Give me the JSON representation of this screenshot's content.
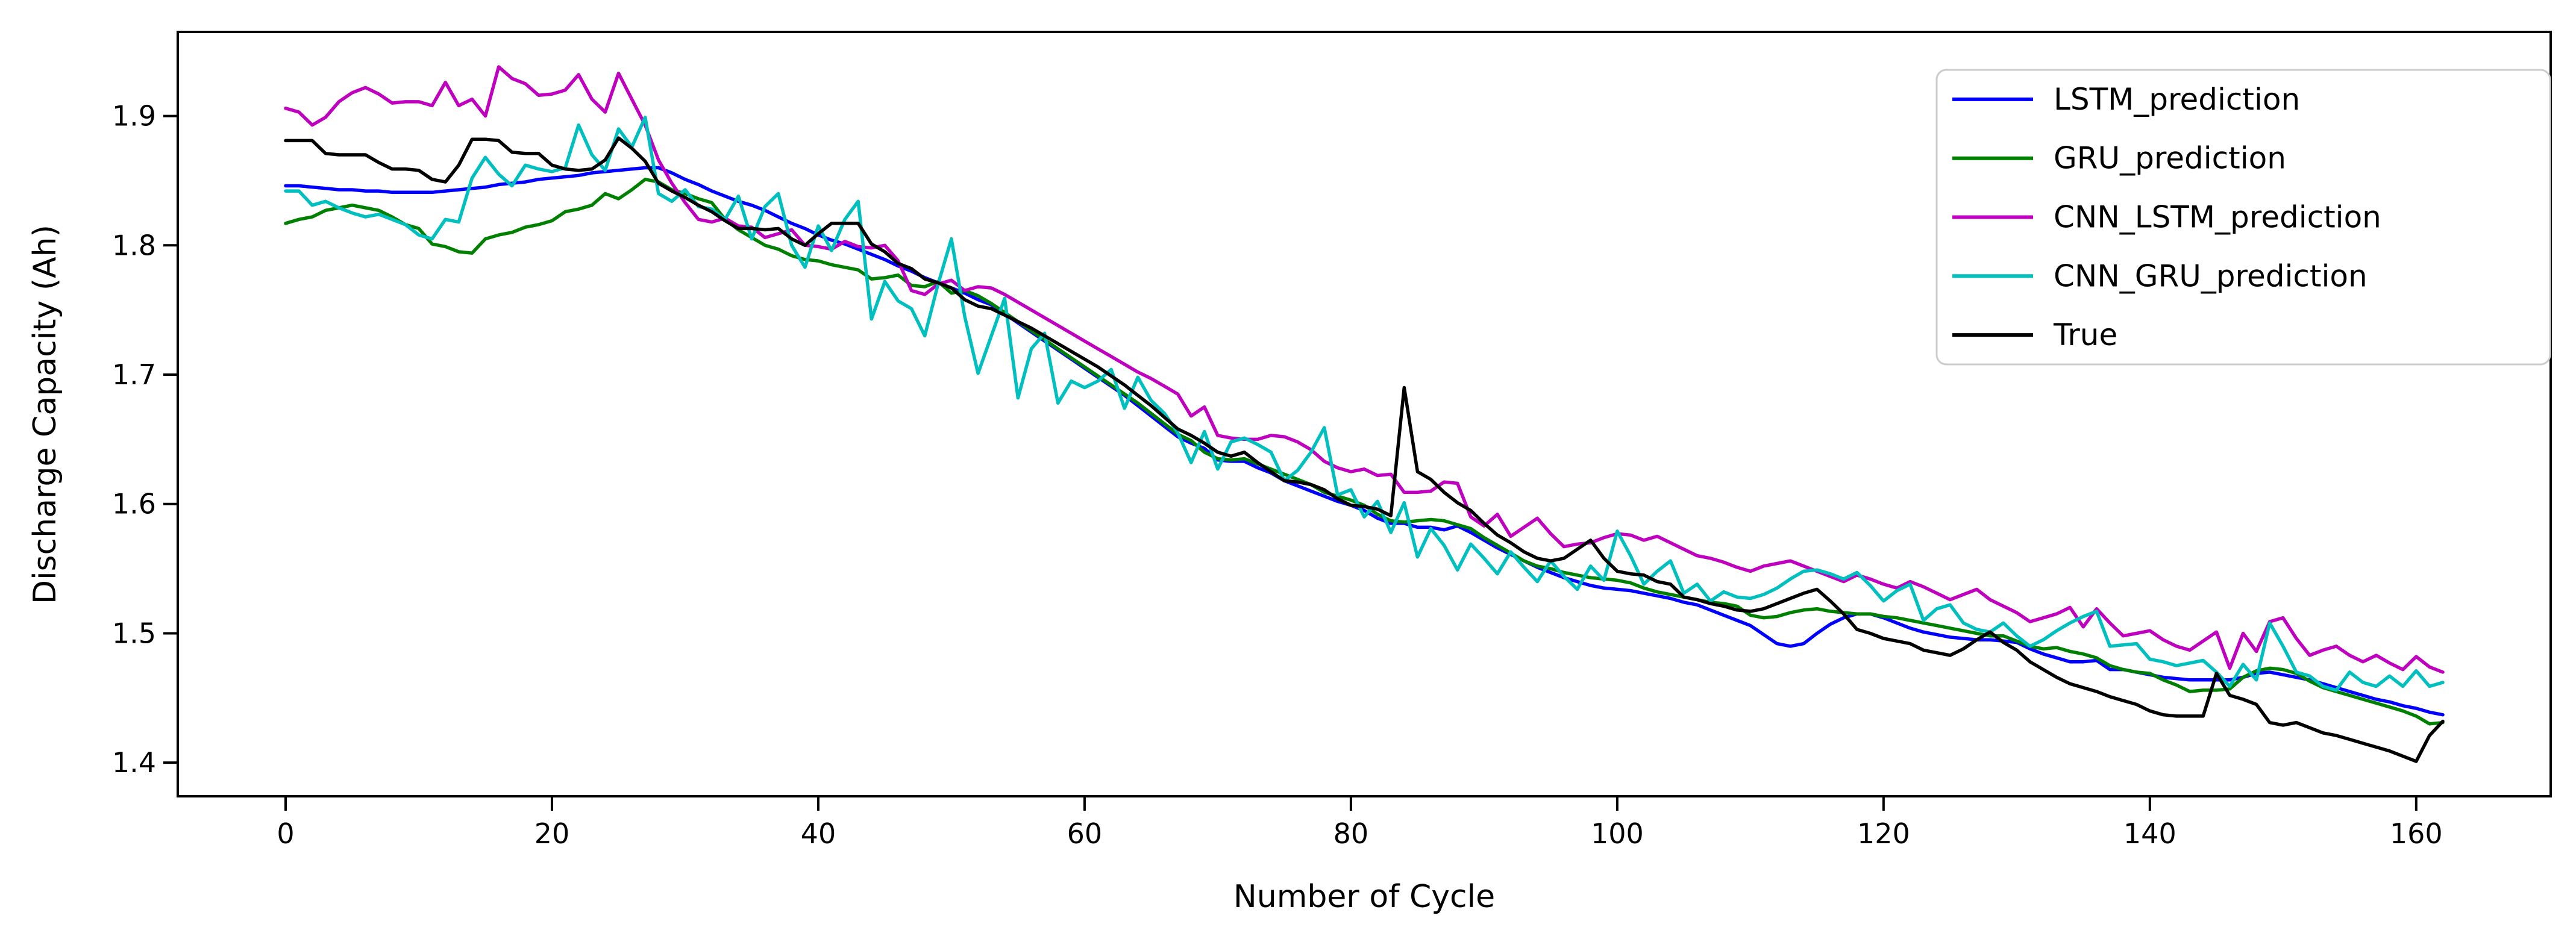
{
  "chart_data": {
    "type": "line",
    "title": "",
    "xlabel": "Number of Cycle",
    "ylabel": "Discharge Capacity (Ah)",
    "grid": false,
    "legend_position": "upper right",
    "xlim": [
      -8.1,
      170.1
    ],
    "ylim": [
      1.374,
      1.965
    ],
    "x_ticks": [
      0,
      20,
      40,
      60,
      80,
      100,
      120,
      140,
      160
    ],
    "y_ticks": [
      1.4,
      1.5,
      1.6,
      1.7,
      1.8,
      1.9
    ],
    "x": [
      0,
      1,
      2,
      3,
      4,
      5,
      6,
      7,
      8,
      9,
      10,
      11,
      12,
      13,
      14,
      15,
      16,
      17,
      18,
      19,
      20,
      21,
      22,
      23,
      24,
      25,
      26,
      27,
      28,
      29,
      30,
      31,
      32,
      33,
      34,
      35,
      36,
      37,
      38,
      39,
      40,
      41,
      42,
      43,
      44,
      45,
      46,
      47,
      48,
      49,
      50,
      51,
      52,
      53,
      54,
      55,
      56,
      57,
      58,
      59,
      60,
      61,
      62,
      63,
      64,
      65,
      66,
      67,
      68,
      69,
      70,
      71,
      72,
      73,
      74,
      75,
      76,
      77,
      78,
      79,
      80,
      81,
      82,
      83,
      84,
      85,
      86,
      87,
      88,
      89,
      90,
      91,
      92,
      93,
      94,
      95,
      96,
      97,
      98,
      99,
      100,
      101,
      102,
      103,
      104,
      105,
      106,
      107,
      108,
      109,
      110,
      111,
      112,
      113,
      114,
      115,
      116,
      117,
      118,
      119,
      120,
      121,
      122,
      123,
      124,
      125,
      126,
      127,
      128,
      129,
      130,
      131,
      132,
      133,
      134,
      135,
      136,
      137,
      138,
      139,
      140,
      141,
      142,
      143,
      144,
      145,
      146,
      147,
      148,
      149,
      150,
      151,
      152,
      153,
      154,
      155,
      156,
      157,
      158,
      159,
      160,
      161,
      162
    ],
    "series": [
      {
        "name": "LSTM_prediction",
        "color": "#0000ff",
        "values": [
          1.846,
          1.846,
          1.845,
          1.844,
          1.843,
          1.843,
          1.842,
          1.842,
          1.841,
          1.841,
          1.841,
          1.841,
          1.842,
          1.843,
          1.844,
          1.845,
          1.847,
          1.848,
          1.849,
          1.851,
          1.852,
          1.853,
          1.854,
          1.856,
          1.857,
          1.858,
          1.859,
          1.86,
          1.86,
          1.856,
          1.851,
          1.847,
          1.842,
          1.838,
          1.834,
          1.831,
          1.827,
          1.822,
          1.817,
          1.813,
          1.808,
          1.804,
          1.801,
          1.797,
          1.793,
          1.789,
          1.784,
          1.78,
          1.775,
          1.771,
          1.767,
          1.763,
          1.758,
          1.754,
          1.747,
          1.74,
          1.733,
          1.726,
          1.719,
          1.712,
          1.705,
          1.698,
          1.691,
          1.684,
          1.676,
          1.668,
          1.66,
          1.652,
          1.647,
          1.643,
          1.634,
          1.633,
          1.633,
          1.628,
          1.624,
          1.618,
          1.614,
          1.61,
          1.606,
          1.602,
          1.599,
          1.595,
          1.589,
          1.585,
          1.585,
          1.582,
          1.582,
          1.58,
          1.583,
          1.578,
          1.572,
          1.566,
          1.561,
          1.556,
          1.551,
          1.547,
          1.543,
          1.54,
          1.537,
          1.535,
          1.534,
          1.533,
          1.531,
          1.529,
          1.527,
          1.524,
          1.522,
          1.518,
          1.514,
          1.51,
          1.506,
          1.499,
          1.492,
          1.49,
          1.492,
          1.5,
          1.507,
          1.512,
          1.515,
          1.515,
          1.512,
          1.508,
          1.504,
          1.501,
          1.499,
          1.497,
          1.496,
          1.495,
          1.495,
          1.494,
          1.493,
          1.488,
          1.484,
          1.481,
          1.478,
          1.478,
          1.479,
          1.472,
          1.472,
          1.47,
          1.468,
          1.466,
          1.465,
          1.464,
          1.464,
          1.464,
          1.464,
          1.466,
          1.469,
          1.47,
          1.468,
          1.466,
          1.464,
          1.461,
          1.458,
          1.455,
          1.452,
          1.449,
          1.447,
          1.444,
          1.442,
          1.439,
          1.437
        ]
      },
      {
        "name": "GRU_prediction",
        "color": "#008000",
        "values": [
          1.817,
          1.82,
          1.822,
          1.827,
          1.829,
          1.831,
          1.829,
          1.827,
          1.822,
          1.816,
          1.813,
          1.801,
          1.799,
          1.795,
          1.794,
          1.805,
          1.808,
          1.81,
          1.814,
          1.816,
          1.819,
          1.826,
          1.828,
          1.831,
          1.84,
          1.836,
          1.843,
          1.851,
          1.849,
          1.843,
          1.84,
          1.836,
          1.833,
          1.82,
          1.812,
          1.806,
          1.8,
          1.797,
          1.792,
          1.789,
          1.788,
          1.785,
          1.783,
          1.781,
          1.774,
          1.775,
          1.777,
          1.769,
          1.768,
          1.772,
          1.763,
          1.765,
          1.761,
          1.755,
          1.748,
          1.741,
          1.734,
          1.727,
          1.72,
          1.713,
          1.706,
          1.699,
          1.692,
          1.685,
          1.678,
          1.67,
          1.662,
          1.654,
          1.649,
          1.64,
          1.635,
          1.634,
          1.635,
          1.631,
          1.627,
          1.623,
          1.619,
          1.615,
          1.609,
          1.606,
          1.603,
          1.599,
          1.592,
          1.587,
          1.586,
          1.587,
          1.588,
          1.587,
          1.584,
          1.581,
          1.574,
          1.568,
          1.562,
          1.556,
          1.552,
          1.55,
          1.547,
          1.545,
          1.543,
          1.542,
          1.541,
          1.539,
          1.535,
          1.532,
          1.53,
          1.528,
          1.526,
          1.524,
          1.523,
          1.521,
          1.514,
          1.512,
          1.513,
          1.516,
          1.518,
          1.519,
          1.517,
          1.516,
          1.515,
          1.515,
          1.513,
          1.512,
          1.51,
          1.508,
          1.506,
          1.504,
          1.502,
          1.5,
          1.498,
          1.498,
          1.494,
          1.49,
          1.488,
          1.489,
          1.486,
          1.484,
          1.481,
          1.475,
          1.472,
          1.47,
          1.469,
          1.464,
          1.46,
          1.455,
          1.456,
          1.456,
          1.457,
          1.466,
          1.471,
          1.473,
          1.472,
          1.469,
          1.463,
          1.458,
          1.455,
          1.452,
          1.449,
          1.446,
          1.443,
          1.44,
          1.436,
          1.43,
          1.431
        ]
      },
      {
        "name": "CNN_LSTM_prediction",
        "color": "#bf00bf",
        "values": [
          1.906,
          1.903,
          1.893,
          1.899,
          1.911,
          1.918,
          1.922,
          1.917,
          1.91,
          1.911,
          1.911,
          1.908,
          1.926,
          1.908,
          1.913,
          1.9,
          1.938,
          1.929,
          1.925,
          1.916,
          1.917,
          1.92,
          1.932,
          1.913,
          1.903,
          1.933,
          1.913,
          1.893,
          1.866,
          1.848,
          1.833,
          1.82,
          1.818,
          1.821,
          1.815,
          1.814,
          1.806,
          1.809,
          1.812,
          1.8,
          1.799,
          1.797,
          1.803,
          1.799,
          1.798,
          1.8,
          1.788,
          1.765,
          1.762,
          1.77,
          1.773,
          1.765,
          1.768,
          1.767,
          1.762,
          1.756,
          1.75,
          1.744,
          1.738,
          1.732,
          1.726,
          1.72,
          1.714,
          1.708,
          1.702,
          1.697,
          1.691,
          1.685,
          1.668,
          1.675,
          1.653,
          1.651,
          1.65,
          1.65,
          1.653,
          1.652,
          1.648,
          1.642,
          1.633,
          1.628,
          1.625,
          1.627,
          1.622,
          1.623,
          1.609,
          1.609,
          1.61,
          1.617,
          1.616,
          1.59,
          1.583,
          1.592,
          1.575,
          1.582,
          1.589,
          1.577,
          1.567,
          1.569,
          1.57,
          1.574,
          1.577,
          1.576,
          1.572,
          1.575,
          1.57,
          1.565,
          1.56,
          1.558,
          1.555,
          1.551,
          1.548,
          1.552,
          1.554,
          1.556,
          1.552,
          1.548,
          1.544,
          1.54,
          1.545,
          1.542,
          1.538,
          1.535,
          1.54,
          1.536,
          1.531,
          1.526,
          1.53,
          1.534,
          1.526,
          1.521,
          1.516,
          1.509,
          1.512,
          1.515,
          1.52,
          1.505,
          1.519,
          1.508,
          1.498,
          1.5,
          1.502,
          1.495,
          1.49,
          1.487,
          1.494,
          1.501,
          1.473,
          1.5,
          1.486,
          1.509,
          1.512,
          1.496,
          1.483,
          1.487,
          1.49,
          1.483,
          1.478,
          1.483,
          1.477,
          1.472,
          1.482,
          1.474,
          1.47
        ]
      },
      {
        "name": "CNN_GRU_prediction",
        "color": "#00bfbf",
        "values": [
          1.842,
          1.842,
          1.831,
          1.834,
          1.829,
          1.825,
          1.822,
          1.824,
          1.82,
          1.816,
          1.808,
          1.805,
          1.82,
          1.818,
          1.852,
          1.868,
          1.855,
          1.846,
          1.862,
          1.859,
          1.857,
          1.86,
          1.893,
          1.87,
          1.858,
          1.89,
          1.876,
          1.899,
          1.84,
          1.834,
          1.843,
          1.83,
          1.828,
          1.82,
          1.838,
          1.805,
          1.83,
          1.84,
          1.8,
          1.783,
          1.815,
          1.796,
          1.82,
          1.834,
          1.743,
          1.772,
          1.757,
          1.751,
          1.73,
          1.77,
          1.805,
          1.745,
          1.701,
          1.73,
          1.759,
          1.682,
          1.72,
          1.732,
          1.678,
          1.695,
          1.69,
          1.695,
          1.704,
          1.674,
          1.698,
          1.68,
          1.67,
          1.655,
          1.632,
          1.656,
          1.627,
          1.648,
          1.651,
          1.646,
          1.64,
          1.618,
          1.626,
          1.64,
          1.659,
          1.607,
          1.611,
          1.59,
          1.602,
          1.578,
          1.601,
          1.559,
          1.581,
          1.568,
          1.549,
          1.569,
          1.558,
          1.546,
          1.563,
          1.551,
          1.54,
          1.556,
          1.544,
          1.534,
          1.552,
          1.541,
          1.579,
          1.56,
          1.538,
          1.548,
          1.556,
          1.531,
          1.538,
          1.525,
          1.532,
          1.528,
          1.527,
          1.53,
          1.535,
          1.542,
          1.548,
          1.549,
          1.546,
          1.542,
          1.547,
          1.537,
          1.525,
          1.533,
          1.538,
          1.51,
          1.519,
          1.522,
          1.508,
          1.503,
          1.501,
          1.508,
          1.498,
          1.49,
          1.495,
          1.502,
          1.508,
          1.513,
          1.517,
          1.49,
          1.491,
          1.492,
          1.48,
          1.478,
          1.475,
          1.477,
          1.479,
          1.47,
          1.459,
          1.476,
          1.464,
          1.508,
          1.49,
          1.47,
          1.467,
          1.459,
          1.456,
          1.47,
          1.462,
          1.459,
          1.467,
          1.459,
          1.471,
          1.459,
          1.462
        ]
      },
      {
        "name": "True",
        "color": "#000000",
        "values": [
          1.881,
          1.881,
          1.881,
          1.871,
          1.87,
          1.87,
          1.87,
          1.864,
          1.859,
          1.859,
          1.858,
          1.851,
          1.849,
          1.862,
          1.882,
          1.882,
          1.881,
          1.872,
          1.871,
          1.871,
          1.862,
          1.859,
          1.858,
          1.859,
          1.866,
          1.883,
          1.875,
          1.865,
          1.848,
          1.842,
          1.837,
          1.831,
          1.826,
          1.819,
          1.813,
          1.813,
          1.812,
          1.813,
          1.805,
          1.8,
          1.809,
          1.817,
          1.817,
          1.817,
          1.801,
          1.795,
          1.786,
          1.782,
          1.774,
          1.771,
          1.767,
          1.758,
          1.753,
          1.751,
          1.746,
          1.741,
          1.736,
          1.73,
          1.724,
          1.718,
          1.712,
          1.706,
          1.699,
          1.692,
          1.684,
          1.676,
          1.667,
          1.658,
          1.653,
          1.647,
          1.64,
          1.637,
          1.64,
          1.632,
          1.625,
          1.618,
          1.617,
          1.615,
          1.611,
          1.604,
          1.599,
          1.598,
          1.596,
          1.591,
          1.69,
          1.625,
          1.619,
          1.609,
          1.601,
          1.595,
          1.585,
          1.576,
          1.57,
          1.563,
          1.558,
          1.556,
          1.558,
          1.565,
          1.572,
          1.558,
          1.548,
          1.546,
          1.545,
          1.54,
          1.538,
          1.528,
          1.526,
          1.523,
          1.521,
          1.518,
          1.517,
          1.519,
          1.523,
          1.527,
          1.531,
          1.534,
          1.525,
          1.515,
          1.503,
          1.5,
          1.496,
          1.494,
          1.492,
          1.487,
          1.485,
          1.483,
          1.488,
          1.495,
          1.501,
          1.493,
          1.487,
          1.478,
          1.472,
          1.466,
          1.461,
          1.458,
          1.455,
          1.451,
          1.448,
          1.445,
          1.44,
          1.437,
          1.436,
          1.436,
          1.436,
          1.469,
          1.452,
          1.449,
          1.445,
          1.431,
          1.429,
          1.431,
          1.427,
          1.423,
          1.421,
          1.418,
          1.415,
          1.412,
          1.409,
          1.405,
          1.401,
          1.421,
          1.432
        ]
      }
    ],
    "legend_labels": [
      "LSTM_prediction",
      "GRU_prediction",
      "CNN_LSTM_prediction",
      "CNN_GRU_prediction",
      "True"
    ]
  },
  "layout_colors": {
    "background": "#ffffff",
    "spine": "#000000",
    "legend_border": "#cccccc",
    "legend_fill": "#ffffff"
  }
}
